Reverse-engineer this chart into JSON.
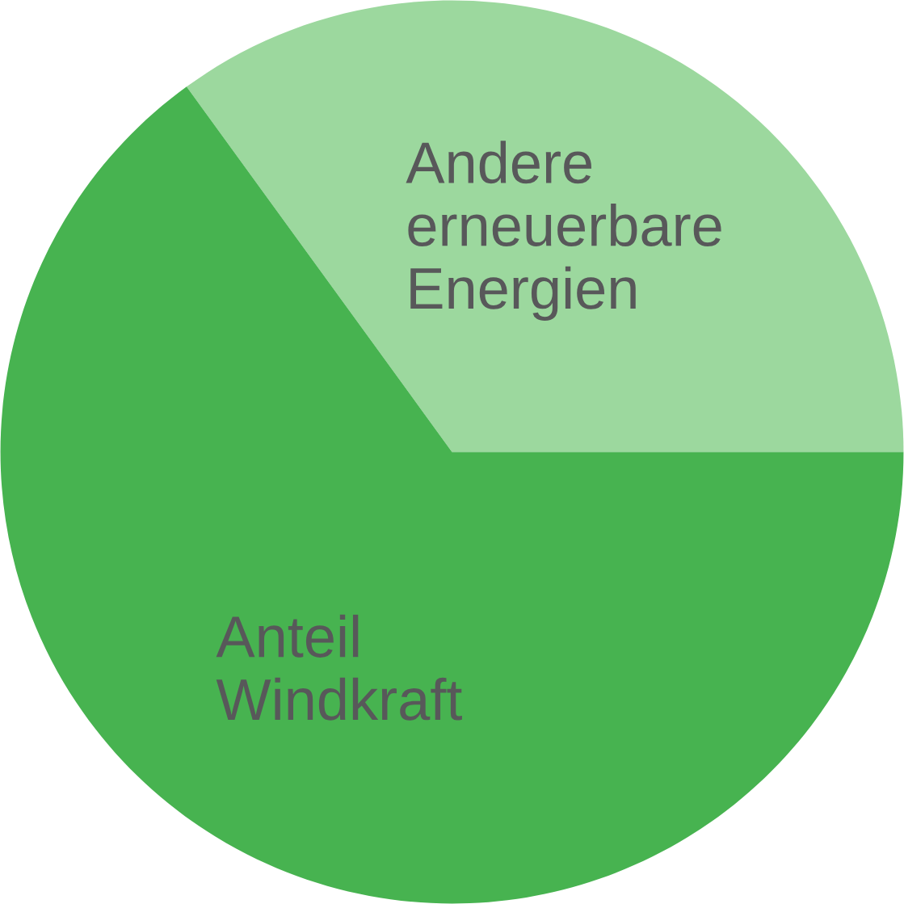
{
  "chart_data": {
    "type": "pie",
    "categories": [
      "Andere\nerneuerbare\nEnergien",
      "Anteil\nWindkraft"
    ],
    "values": [
      35,
      65
    ],
    "colors": [
      "#9cd89e",
      "#47b350"
    ]
  }
}
